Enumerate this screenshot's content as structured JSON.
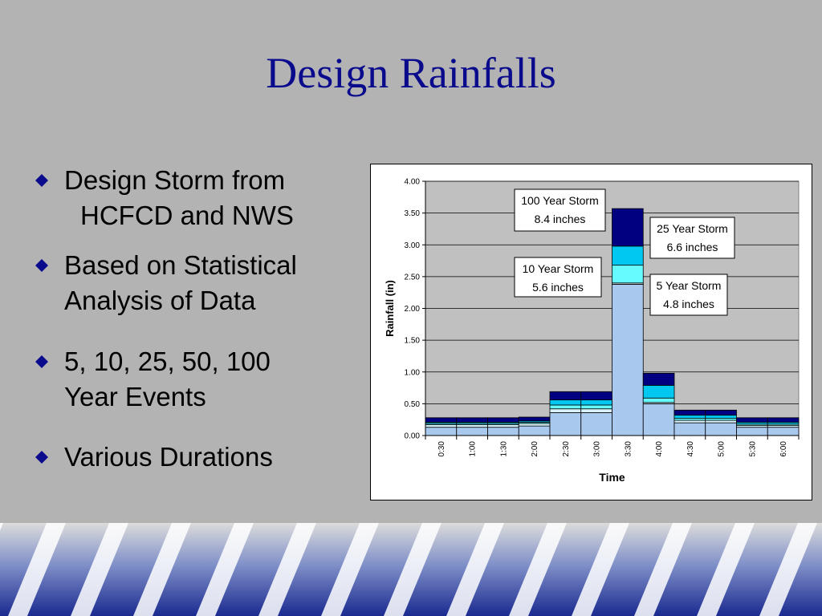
{
  "slide": {
    "title": "Design Rainfalls",
    "bullets": [
      {
        "line1": "Design Storm from",
        "line2": "HCFCD and NWS"
      },
      {
        "line1": "Based on Statistical",
        "line2": "Analysis of Data"
      },
      {
        "line1": "5, 10, 25, 50, 100",
        "line2": "Year Events"
      },
      {
        "line1": "Various Durations",
        "line2": ""
      }
    ],
    "bullet_icon": "diamond-bullet-icon",
    "colors": {
      "background": "#b3b3b3",
      "title": "#0a0a8c",
      "bullet": "#0a0a8c"
    }
  },
  "chart_data": {
    "type": "bar",
    "stacked": true,
    "xlabel": "Time",
    "ylabel": "Rainfall (in)",
    "ylim": [
      0,
      4.0
    ],
    "yticks": [
      "0.00",
      "0.50",
      "1.00",
      "1.50",
      "2.00",
      "2.50",
      "3.00",
      "3.50",
      "4.00"
    ],
    "categories": [
      "0:30",
      "1:00",
      "1:30",
      "2:00",
      "2:30",
      "3:00",
      "3:30",
      "4:00",
      "4:30",
      "5:00",
      "5:30",
      "6:00"
    ],
    "series_colors": [
      "#a9c8ee",
      "#d7f3fb",
      "#66fcff",
      "#00c8f0",
      "#000080"
    ],
    "series": [
      {
        "values": [
          0.13,
          0.13,
          0.13,
          0.15,
          0.36,
          0.36,
          2.38,
          0.5,
          0.2,
          0.2,
          0.13,
          0.13
        ]
      },
      {
        "values": [
          0.04,
          0.04,
          0.04,
          0.04,
          0.06,
          0.06,
          0.02,
          0.02,
          0.04,
          0.04,
          0.03,
          0.03
        ]
      },
      {
        "values": [
          0.02,
          0.02,
          0.02,
          0.02,
          0.06,
          0.06,
          0.28,
          0.07,
          0.03,
          0.03,
          0.02,
          0.02
        ]
      },
      {
        "values": [
          0.02,
          0.02,
          0.02,
          0.02,
          0.08,
          0.08,
          0.3,
          0.2,
          0.05,
          0.05,
          0.03,
          0.03
        ]
      },
      {
        "values": [
          0.07,
          0.07,
          0.07,
          0.06,
          0.13,
          0.13,
          0.59,
          0.19,
          0.08,
          0.08,
          0.07,
          0.07
        ]
      }
    ],
    "annotations": [
      {
        "line1": "100 Year Storm",
        "line2": "8.4 inches"
      },
      {
        "line1": "25 Year Storm",
        "line2": "6.6 inches"
      },
      {
        "line1": "10 Year Storm",
        "line2": "5.6 inches"
      },
      {
        "line1": "5 Year Storm",
        "line2": "4.8 inches"
      }
    ],
    "grid": true,
    "legend": "none"
  }
}
